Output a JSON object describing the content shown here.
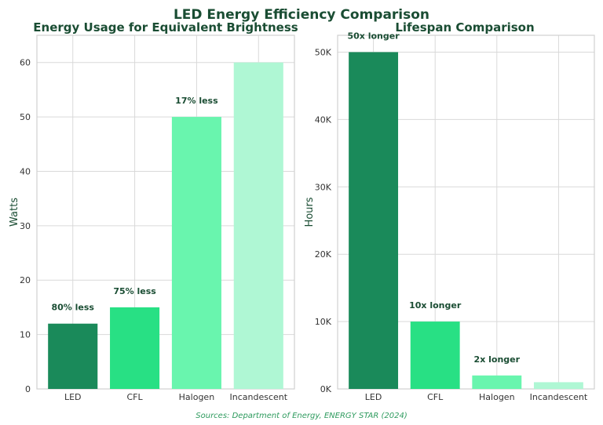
{
  "title": "LED Energy Efficiency Comparison",
  "footer": "Sources: Department of Energy, ENERGY STAR (2024)",
  "colors": {
    "title": "#1a4d33",
    "footer": "#2e9b5e",
    "bars": [
      "#1a8a5a",
      "#28e084",
      "#69f5ae",
      "#aff7d4"
    ],
    "grid": "#d9d9d9",
    "annotation": "#1a4d33"
  },
  "chart_data": [
    {
      "type": "bar",
      "title": "Energy Usage for Equivalent Brightness",
      "xlabel": "",
      "ylabel": "Watts",
      "categories": [
        "LED",
        "CFL",
        "Halogen",
        "Incandescent"
      ],
      "values": [
        12,
        15,
        50,
        60
      ],
      "annotations": [
        "80% less",
        "75% less",
        "17% less",
        ""
      ],
      "ylim": [
        0,
        65
      ],
      "yticks": [
        0,
        10,
        20,
        30,
        40,
        50,
        60
      ],
      "ytick_labels": [
        "0",
        "10",
        "20",
        "30",
        "40",
        "50",
        "60"
      ],
      "grid": true
    },
    {
      "type": "bar",
      "title": "Lifespan Comparison",
      "xlabel": "",
      "ylabel": "Hours",
      "categories": [
        "LED",
        "CFL",
        "Halogen",
        "Incandescent"
      ],
      "values": [
        50000,
        10000,
        2000,
        1000
      ],
      "annotations": [
        "50x longer",
        "10x longer",
        "2x longer",
        ""
      ],
      "ylim": [
        0,
        52500
      ],
      "yticks": [
        0,
        10000,
        20000,
        30000,
        40000,
        50000
      ],
      "ytick_labels": [
        "0K",
        "10K",
        "20K",
        "30K",
        "40K",
        "50K"
      ],
      "grid": true
    }
  ]
}
